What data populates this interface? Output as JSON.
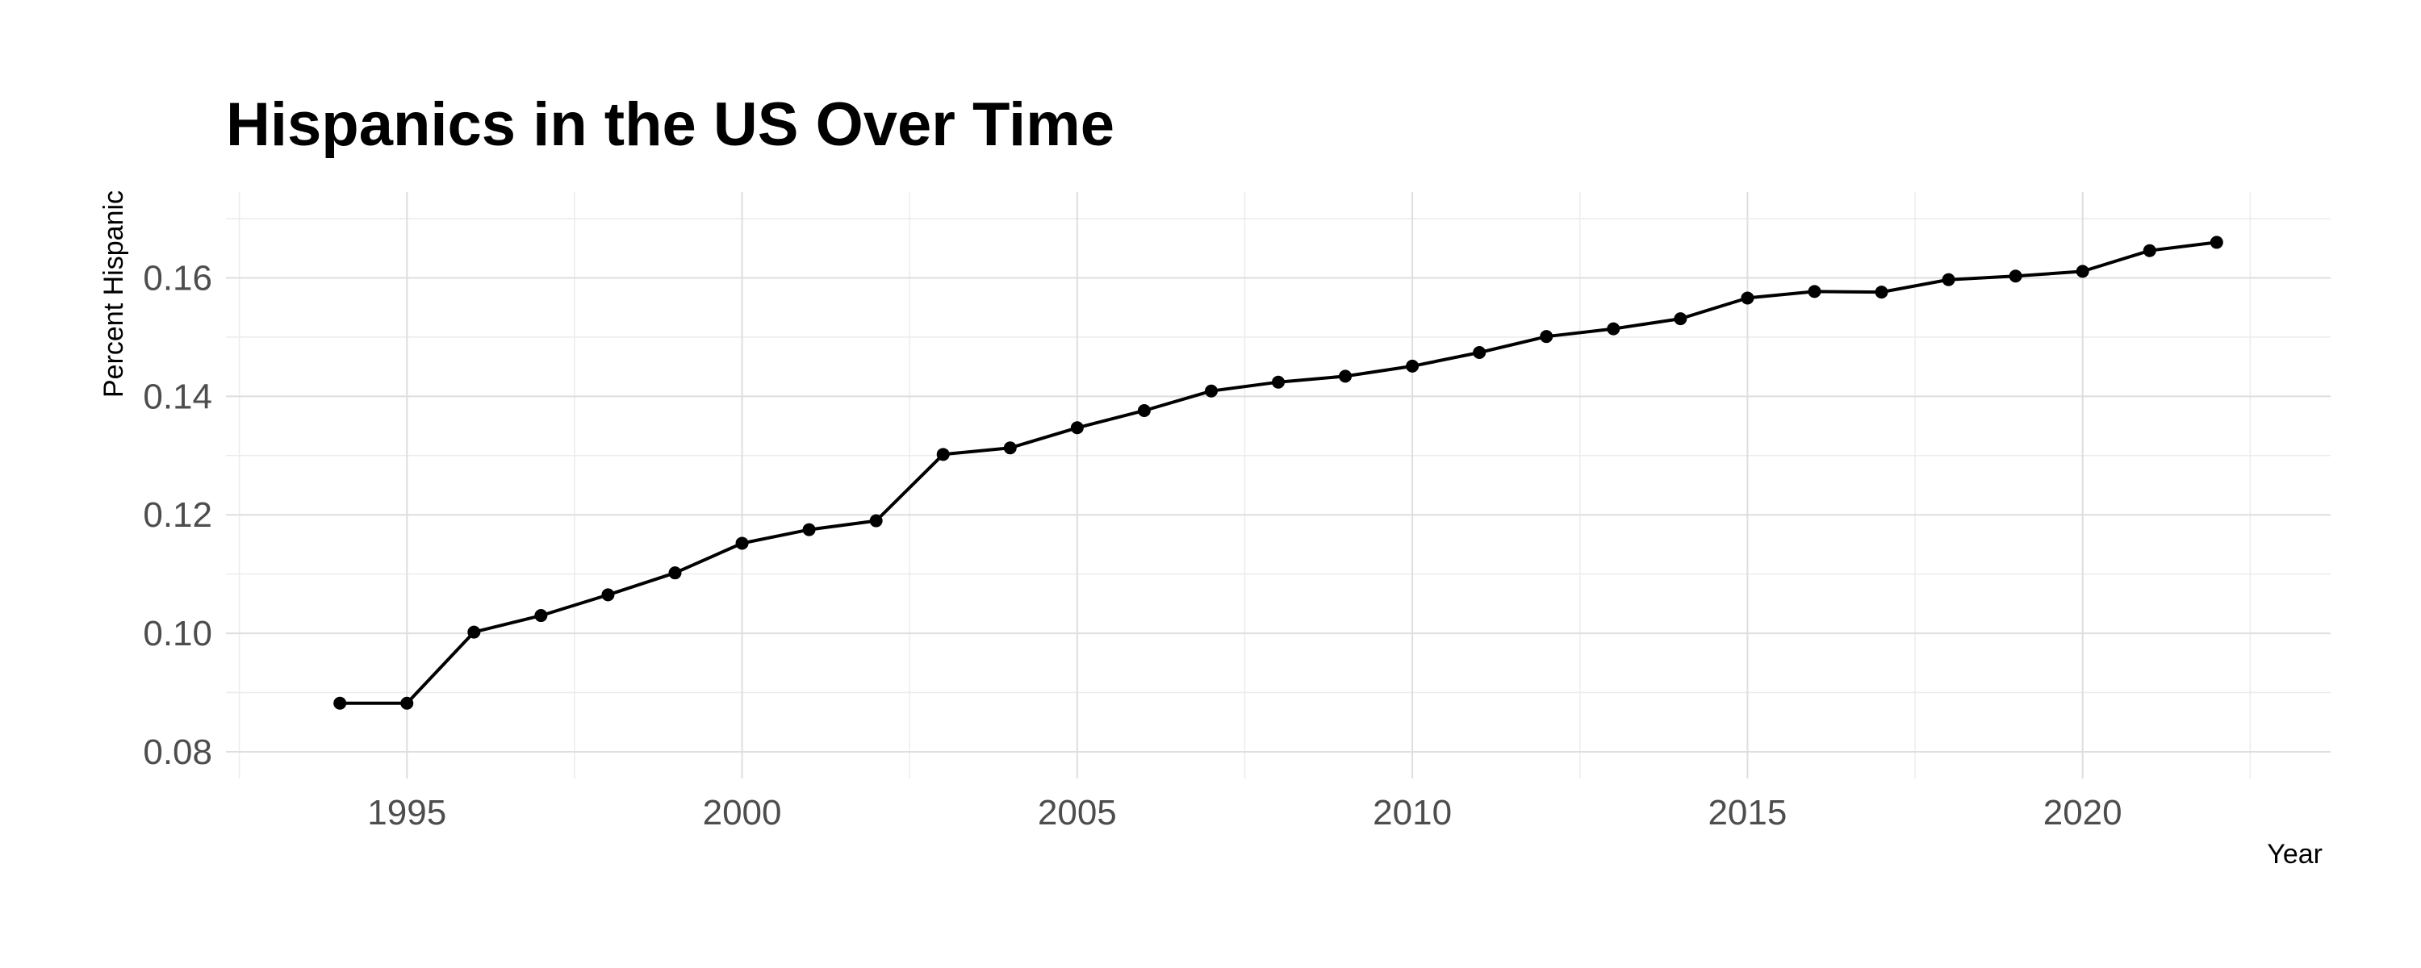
{
  "chart_data": {
    "type": "line",
    "title": "Hispanics in the US Over Time",
    "xlabel": "Year",
    "ylabel": "Percent Hispanic",
    "xlim": [
      1992.3,
      2023.7
    ],
    "ylim": [
      0.0755,
      0.1745
    ],
    "x_ticks": [
      1995,
      2000,
      2005,
      2010,
      2015,
      2020
    ],
    "x_tick_labels": [
      "1995",
      "2000",
      "2005",
      "2010",
      "2015",
      "2020"
    ],
    "y_ticks": [
      0.08,
      0.1,
      0.12,
      0.14,
      0.16
    ],
    "y_tick_labels": [
      "0.08",
      "0.10",
      "0.12",
      "0.14",
      "0.16"
    ],
    "grid": true,
    "series": [
      {
        "color": "#000000",
        "x": [
          1994,
          1995,
          1996,
          1997,
          1998,
          1999,
          2000,
          2001,
          2002,
          2003,
          2004,
          2005,
          2006,
          2007,
          2008,
          2009,
          2010,
          2011,
          2012,
          2013,
          2014,
          2015,
          2016,
          2017,
          2018,
          2019,
          2020,
          2021,
          2022
        ],
        "values": [
          0.0882,
          0.0882,
          0.1002,
          0.103,
          0.1065,
          0.1102,
          0.1152,
          0.1175,
          0.119,
          0.1302,
          0.1313,
          0.1347,
          0.1376,
          0.1409,
          0.1424,
          0.1434,
          0.1451,
          0.1474,
          0.1501,
          0.1514,
          0.1531,
          0.1566,
          0.1577,
          0.1576,
          0.1597,
          0.1603,
          0.1611,
          0.1646,
          0.166
        ]
      }
    ]
  }
}
